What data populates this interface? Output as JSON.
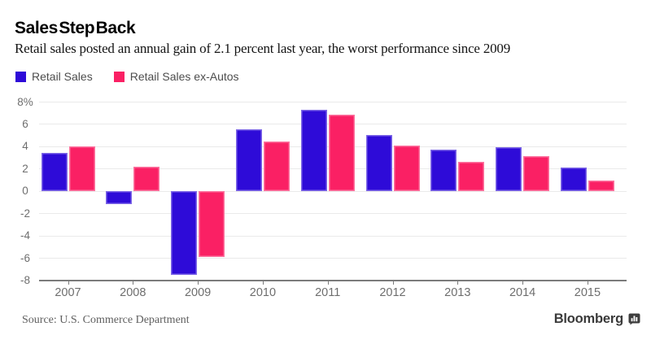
{
  "header": {
    "title": "Sales Step Back",
    "subtitle": "Retail sales posted an annual gain of 2.1 percent last year, the worst performance since 2009"
  },
  "chart_data": {
    "type": "bar",
    "categories": [
      "2007",
      "2008",
      "2009",
      "2010",
      "2011",
      "2012",
      "2013",
      "2014",
      "2015"
    ],
    "series": [
      {
        "name": "Retail Sales",
        "color": "#2e0bd8",
        "values": [
          3.4,
          -1.2,
          -7.5,
          5.5,
          7.3,
          5.0,
          3.7,
          3.9,
          2.1
        ]
      },
      {
        "name": "Retail Sales ex-Autos",
        "color": "#fa2064",
        "values": [
          4.0,
          2.2,
          -5.9,
          4.4,
          6.8,
          4.1,
          2.6,
          3.1,
          0.9
        ]
      }
    ],
    "title": "Sales Step Back",
    "xlabel": "",
    "ylabel": "",
    "ylim": [
      -8,
      8
    ],
    "ytick_values": [
      8,
      6,
      4,
      2,
      0,
      -2,
      -4,
      -6,
      -8
    ],
    "ytick_labels": [
      "8%",
      "6",
      "4",
      "2",
      "0",
      "-2",
      "-4",
      "-6",
      "-8"
    ],
    "grid": true,
    "legend_position": "top-left"
  },
  "footer": {
    "source": "Source: U.S. Commerce Department",
    "brand": "Bloomberg",
    "brand_icon": "bloomberg-terminal-icon"
  },
  "colors": {
    "series1": "#2e0bd8",
    "series2": "#fa2064",
    "gridline": "#eaeaea",
    "axis": "#7b7b7b",
    "tick_label": "#6e6e6e",
    "legend_text": "#4d4d4d",
    "brand_text": "#3a3a3a"
  }
}
